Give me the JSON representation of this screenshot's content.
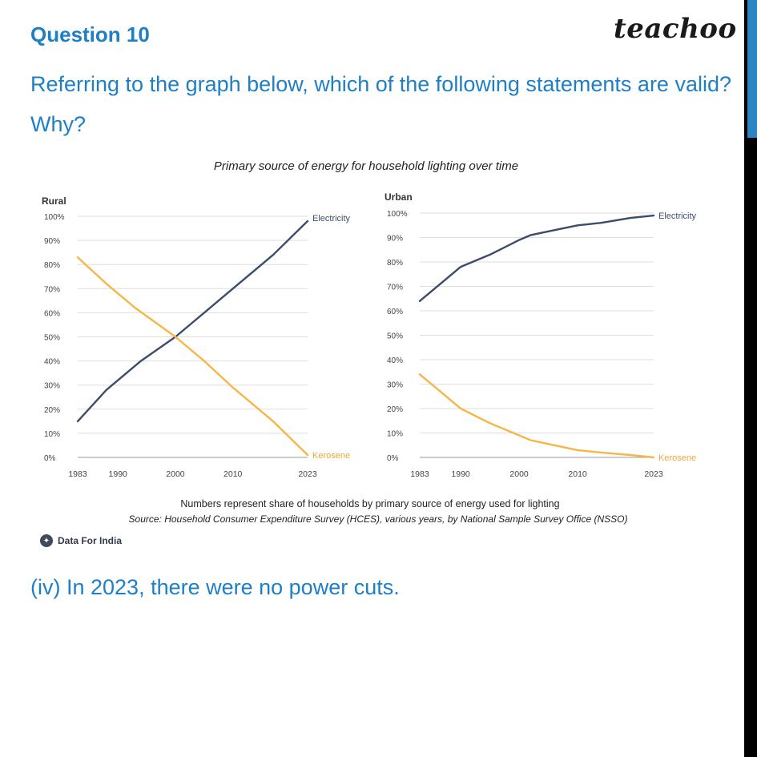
{
  "header": {
    "question_title": "Question 10",
    "brand": "teachoo"
  },
  "question": {
    "text": "Referring to the graph below, which of the following statements are valid? Why?",
    "statement": "(iv) In 2023, there were no power cuts."
  },
  "footer_brand": {
    "label": "Data For India",
    "icon": "data-for-india-logo-icon"
  },
  "colors": {
    "electricity": "#3d4c6b",
    "kerosene": "#f6b648",
    "accent": "#1f7fc4"
  },
  "chart_data": {
    "type": "line",
    "title": "Primary source of energy for household lighting over time",
    "note": "Numbers represent share of households by primary source of energy used for lighting",
    "source": "Source: Household Consumer Expenditure Survey (HCES), various years, by National Sample Survey Office (NSSO)",
    "x_ticks": [
      "1983",
      "1990",
      "2000",
      "2010",
      "2023"
    ],
    "y_ticks": [
      "0%",
      "10%",
      "20%",
      "30%",
      "40%",
      "50%",
      "60%",
      "70%",
      "80%",
      "90%",
      "100%"
    ],
    "xlim": [
      1983,
      2023
    ],
    "ylim": [
      0,
      100
    ],
    "panels": [
      {
        "name": "Rural",
        "series": [
          {
            "name": "Electricity",
            "x": [
              1983,
              1988,
              1994,
              2000,
              2005,
              2010,
              2017,
              2023
            ],
            "values": [
              15,
              28,
              40,
              50,
              60,
              70,
              84,
              98
            ]
          },
          {
            "name": "Kerosene",
            "x": [
              1983,
              1988,
              1993,
              2000,
              2005,
              2010,
              2017,
              2023
            ],
            "values": [
              83,
              72,
              62,
              50,
              40,
              29,
              15,
              1
            ]
          }
        ]
      },
      {
        "name": "Urban",
        "series": [
          {
            "name": "Electricity",
            "x": [
              1983,
              1987,
              1990,
              1995,
              2000,
              2002,
              2006,
              2010,
              2014,
              2019,
              2023
            ],
            "values": [
              64,
              72,
              78,
              83,
              89,
              91,
              93,
              95,
              96,
              98,
              99
            ]
          },
          {
            "name": "Kerosene",
            "x": [
              1983,
              1987,
              1990,
              1995,
              2000,
              2002,
              2006,
              2010,
              2014,
              2019,
              2023
            ],
            "values": [
              34,
              26,
              20,
              14,
              9,
              7,
              5,
              3,
              2,
              1,
              0
            ]
          }
        ]
      }
    ]
  }
}
